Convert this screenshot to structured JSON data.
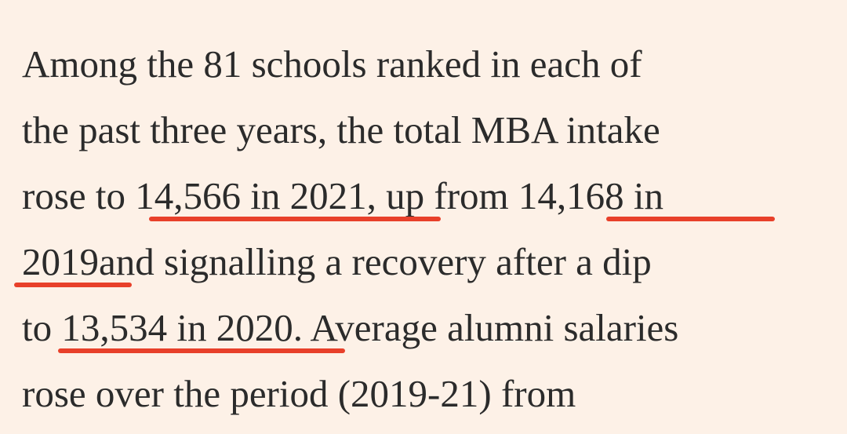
{
  "article": {
    "lines": [
      {
        "text": "Among the 81 schools ranked in each of"
      },
      {
        "text": "the past three years, the total MBA intake"
      },
      {
        "pre": "rose to ",
        "hl1": "14,566 in 2021,",
        "mid": " up from ",
        "hl2": "14,168 in"
      },
      {
        "hl": "2019 ",
        "post": "and signalling a recovery after a dip"
      },
      {
        "pre": "to ",
        "hl": "13,534 in 2020",
        "post": ". Average alumni salaries"
      },
      {
        "text": "rose over the period (2019-21) from"
      }
    ],
    "highlight_color": "#e8402a"
  }
}
